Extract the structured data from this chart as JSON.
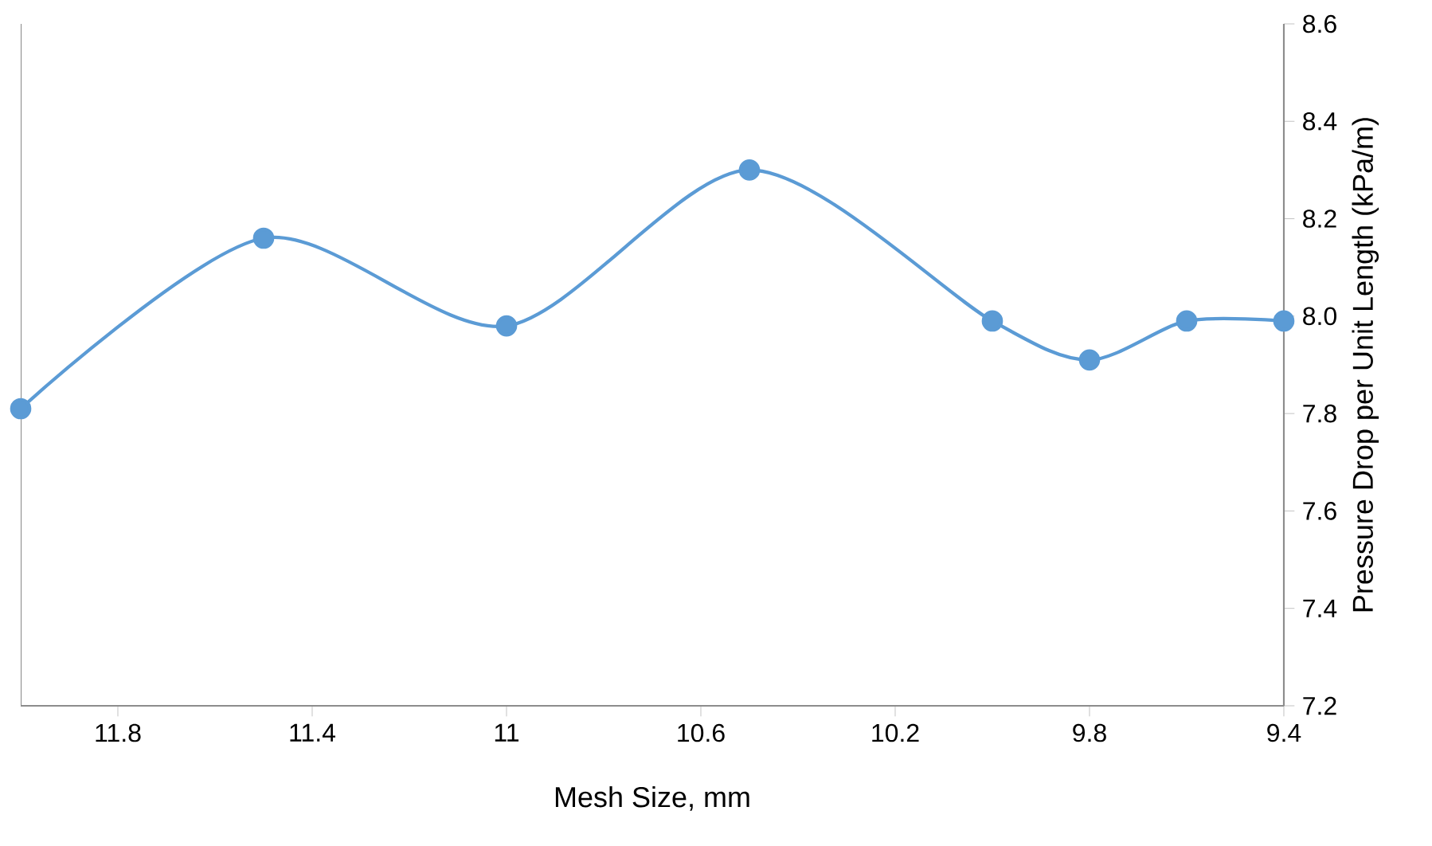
{
  "chart_data": {
    "type": "line",
    "xlabel": "Mesh Size, mm",
    "y2label": "Pressure Drop per Unit Length (kPa/m)",
    "x": [
      12.0,
      11.5,
      11.0,
      10.5,
      10.0,
      9.8,
      9.6,
      9.4
    ],
    "series": [
      {
        "color": "#5b9bd5",
        "values": [
          7.81,
          8.16,
          7.98,
          8.3,
          7.99,
          7.91,
          7.99,
          7.99
        ],
        "axis": "y2"
      }
    ],
    "xlim": [
      12.0,
      9.4
    ],
    "xticks": [
      11.8,
      11.4,
      11,
      10.6,
      10.2,
      9.8,
      9.4
    ],
    "y2lim": [
      7.2,
      8.6
    ],
    "y2ticks": [
      7.2,
      7.4,
      7.6,
      7.8,
      {
        "value": 8,
        "label": "8.0"
      },
      8.2,
      8.4,
      8.6
    ],
    "marker": "circle"
  }
}
